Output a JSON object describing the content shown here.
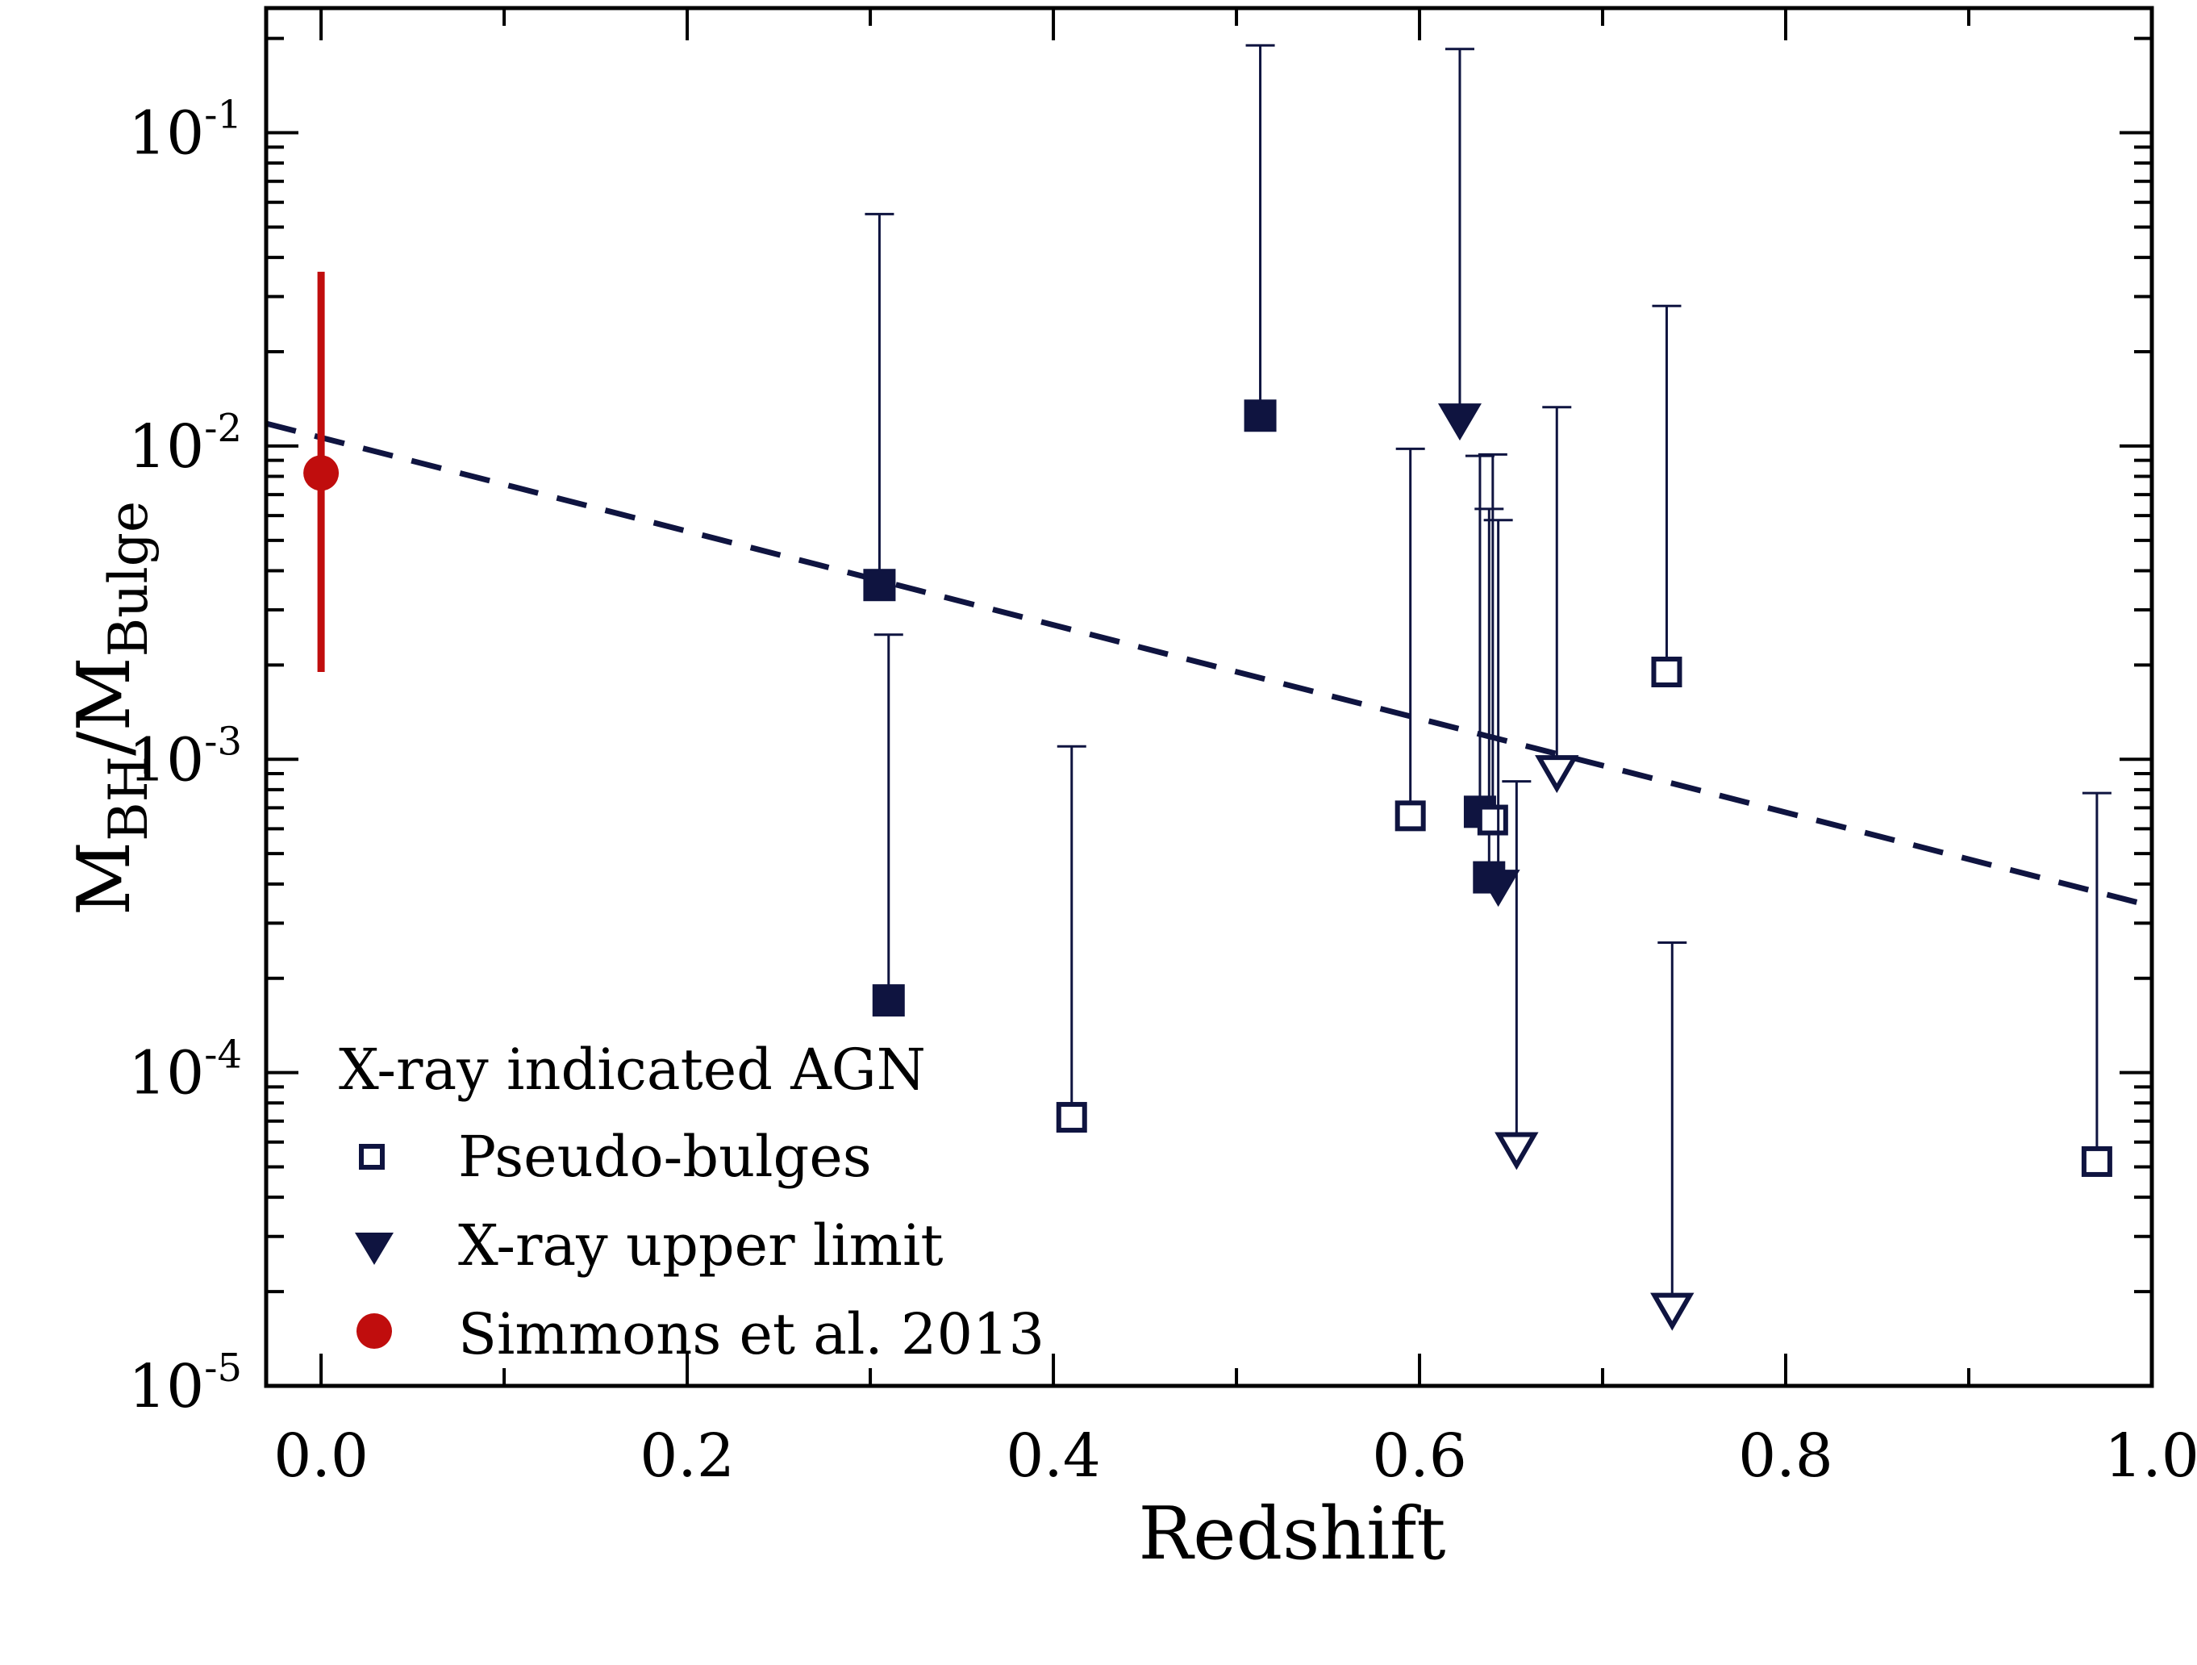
{
  "chart_data": {
    "type": "scatter",
    "xlabel": "Redshift",
    "ylabel": {
      "base": "M",
      "sub1": "BH",
      "slash": "/M",
      "sub2": "Bulge"
    },
    "xlim": [
      -0.03,
      1.0
    ],
    "ylim": [
      1e-05,
      0.25
    ],
    "yscale": "log",
    "x_ticks": [
      {
        "value": 0.0,
        "label": "0.0"
      },
      {
        "value": 0.2,
        "label": "0.2"
      },
      {
        "value": 0.4,
        "label": "0.4"
      },
      {
        "value": 0.6,
        "label": "0.6"
      },
      {
        "value": 0.8,
        "label": "0.8"
      },
      {
        "value": 1.0,
        "label": "1.0"
      }
    ],
    "y_ticks": [
      {
        "value": 1e-05,
        "base": "10",
        "exp": "-5"
      },
      {
        "value": 0.0001,
        "base": "10",
        "exp": "-4"
      },
      {
        "value": 0.001,
        "base": "10",
        "exp": "-3"
      },
      {
        "value": 0.01,
        "base": "10",
        "exp": "-2"
      },
      {
        "value": 0.1,
        "base": "10",
        "exp": "-1"
      }
    ],
    "grid": false,
    "legend": {
      "placement": "bottom-left",
      "title": "X-ray indicated AGN",
      "entries": [
        {
          "label": "Pseudo-bulges",
          "marker": "open-square"
        },
        {
          "label": "X-ray upper limit",
          "marker": "filled-down-triangle"
        },
        {
          "label": "Simmons et al. 2013",
          "marker": "red-circle"
        }
      ]
    },
    "colors": {
      "navy": "#0f1440",
      "red": "#c00d0d"
    },
    "series": [
      {
        "name": "X-ray indicated AGN",
        "marker": "filled-square",
        "points": [
          {
            "x": 0.305,
            "y": 0.0036,
            "err_hi": 0.055,
            "err_lo": null
          },
          {
            "x": 0.31,
            "y": 0.00017,
            "err_hi": 0.0025,
            "err_lo": null
          },
          {
            "x": 0.513,
            "y": 0.0125,
            "err_hi": 0.19,
            "err_lo": null
          },
          {
            "x": 0.633,
            "y": 0.00068,
            "err_hi": 0.0093,
            "err_lo": null
          },
          {
            "x": 0.638,
            "y": 0.00042,
            "err_hi": 0.0063,
            "err_lo": null
          }
        ]
      },
      {
        "name": "Pseudo-bulges",
        "marker": "open-square",
        "points": [
          {
            "x": 0.41,
            "y": 7.2e-05,
            "err_hi": 0.0011,
            "err_lo": null
          },
          {
            "x": 0.595,
            "y": 0.00066,
            "err_hi": 0.0098,
            "err_lo": null
          },
          {
            "x": 0.64,
            "y": 0.00064,
            "err_hi": 0.0094,
            "err_lo": null
          },
          {
            "x": 0.735,
            "y": 0.0019,
            "err_hi": 0.028,
            "err_lo": null
          },
          {
            "x": 0.97,
            "y": 5.2e-05,
            "err_hi": 0.00078,
            "err_lo": null
          }
        ]
      },
      {
        "name": "X-ray upper limit",
        "marker": "filled-down-triangle",
        "points": [
          {
            "x": 0.622,
            "y": 0.012,
            "err_hi": 0.185,
            "err_lo": null
          },
          {
            "x": 0.643,
            "y": 0.00039,
            "err_hi": 0.0058,
            "err_lo": null
          }
        ]
      },
      {
        "name": "X-ray upper limit (pseudo-bulge)",
        "marker": "open-down-triangle",
        "points": [
          {
            "x": 0.653,
            "y": 5.7e-05,
            "err_hi": 0.00085,
            "err_lo": null
          },
          {
            "x": 0.675,
            "y": 0.00091,
            "err_hi": 0.0133,
            "err_lo": null
          },
          {
            "x": 0.738,
            "y": 1.75e-05,
            "err_hi": 0.00026,
            "err_lo": null
          }
        ]
      },
      {
        "name": "Simmons et al. 2013",
        "marker": "red-circle",
        "points": [
          {
            "x": 0.0,
            "y": 0.0082,
            "err_hi": 0.036,
            "err_lo": 0.0019
          }
        ]
      }
    ],
    "fit_line": {
      "style": "dashed",
      "x": [
        -0.03,
        1.0
      ],
      "y": [
        0.0118,
        0.00034
      ]
    }
  }
}
